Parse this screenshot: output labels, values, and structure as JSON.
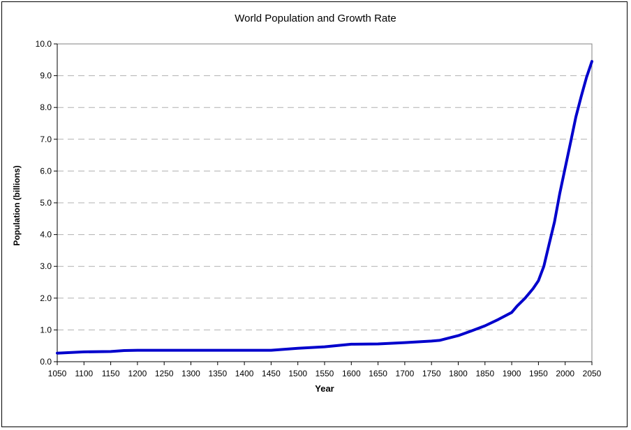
{
  "chart_data": {
    "type": "line",
    "title": "World Population and Growth Rate",
    "xlabel": "Year",
    "ylabel": "Population (billions)",
    "xlim": [
      1050,
      2050
    ],
    "ylim": [
      0,
      10
    ],
    "x_ticks": [
      "1050",
      "1100",
      "1150",
      "1200",
      "1250",
      "1300",
      "1350",
      "1400",
      "1450",
      "1500",
      "1550",
      "1600",
      "1650",
      "1700",
      "1750",
      "1800",
      "1850",
      "1900",
      "1950",
      "2000",
      "2050"
    ],
    "y_ticks": [
      "0.0",
      "1.0",
      "2.0",
      "3.0",
      "4.0",
      "5.0",
      "6.0",
      "7.0",
      "8.0",
      "9.0",
      "10.0"
    ],
    "grid": "horizontal dashed",
    "line_color": "#0000cc",
    "series": [
      {
        "x": [
          1050,
          1100,
          1150,
          1175,
          1200,
          1300,
          1400,
          1450,
          1500,
          1550,
          1600,
          1650,
          1700,
          1750,
          1765,
          1800,
          1825,
          1850,
          1875,
          1900,
          1910,
          1925,
          1940,
          1950,
          1960,
          1970,
          1980,
          1990,
          2000,
          2010,
          2020,
          2030,
          2040,
          2050
        ],
        "y": [
          0.27,
          0.31,
          0.32,
          0.35,
          0.36,
          0.36,
          0.36,
          0.36,
          0.42,
          0.47,
          0.55,
          0.56,
          0.6,
          0.65,
          0.67,
          0.82,
          0.97,
          1.13,
          1.33,
          1.55,
          1.75,
          2.0,
          2.3,
          2.55,
          3.0,
          3.7,
          4.4,
          5.3,
          6.1,
          6.9,
          7.7,
          8.35,
          8.95,
          9.45
        ]
      }
    ]
  }
}
